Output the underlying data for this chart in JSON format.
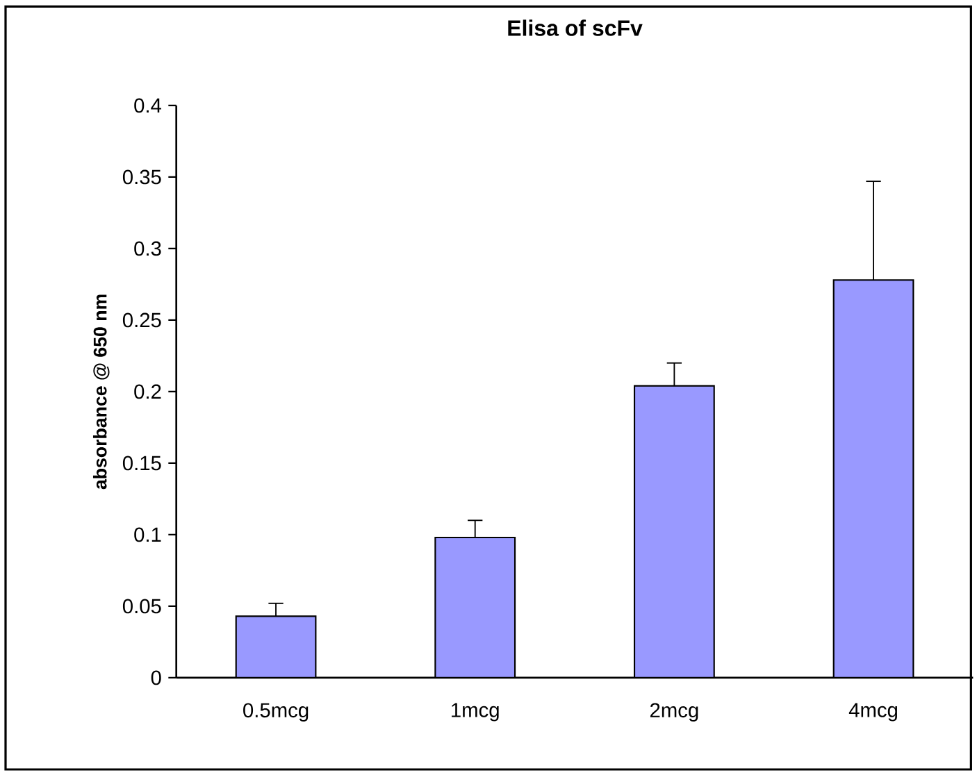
{
  "chart_data": {
    "type": "bar",
    "title": "Elisa of scFv",
    "ylabel": "absorbance @ 650 nm",
    "categories": [
      "0.5mcg",
      "1mcg",
      "2mcg",
      "4mcg"
    ],
    "values": [
      0.043,
      0.098,
      0.204,
      0.278
    ],
    "errors": [
      0.009,
      0.012,
      0.016,
      0.069
    ],
    "color": "#9999ff",
    "ylim": [
      0,
      0.4
    ],
    "yticks": [
      0,
      0.05,
      0.1,
      0.15,
      0.2,
      0.25,
      0.3,
      0.35,
      0.4
    ],
    "grid": false
  }
}
